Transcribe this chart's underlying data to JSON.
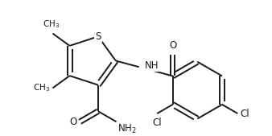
{
  "bg_color": "#ffffff",
  "line_color": "#1a1a1a",
  "bond_width": 1.4,
  "font_size": 8.5,
  "figsize": [
    3.38,
    1.69
  ],
  "dpi": 100,
  "xlim": [
    0,
    338
  ],
  "ylim": [
    0,
    169
  ]
}
